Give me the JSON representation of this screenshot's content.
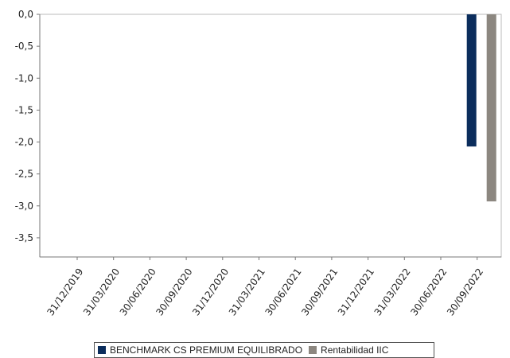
{
  "chart_data": {
    "type": "bar",
    "categories": [
      "31/12/2019",
      "31/03/2020",
      "30/06/2020",
      "30/09/2020",
      "31/12/2020",
      "31/03/2021",
      "30/06/2021",
      "30/09/2021",
      "31/12/2021",
      "31/03/2022",
      "30/06/2022",
      "30/09/2022"
    ],
    "series": [
      {
        "name": "BENCHMARK CS PREMIUM EQUILIBRADO",
        "color": "#0b2d5c",
        "values": [
          null,
          null,
          null,
          null,
          null,
          null,
          null,
          null,
          null,
          null,
          null,
          -2.07
        ]
      },
      {
        "name": "Rentabilidad IIC",
        "color": "#8c8780",
        "values": [
          null,
          null,
          null,
          null,
          null,
          null,
          null,
          null,
          null,
          null,
          null,
          -2.93
        ]
      }
    ],
    "yticks": [
      "0,0",
      "-0,5",
      "-1,0",
      "-1,5",
      "-2,0",
      "-2,5",
      "-3,0",
      "-3,5"
    ],
    "ylim": [
      -3.8,
      0
    ],
    "title": "",
    "xlabel": "",
    "ylabel": "",
    "grid": false,
    "legend_position": "bottom"
  }
}
